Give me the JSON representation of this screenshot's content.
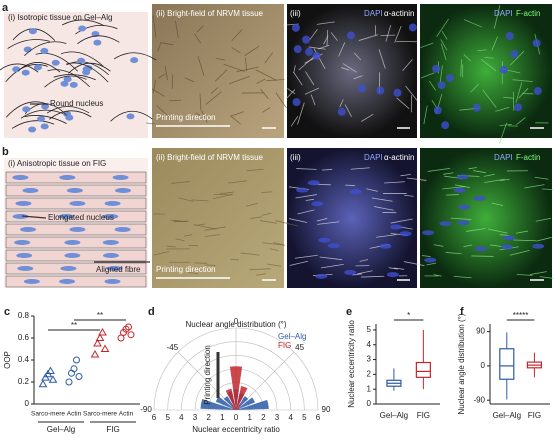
{
  "panel_a": {
    "label": "a",
    "i": {
      "title": "(i) Isotropic tissue on Gel–Alg",
      "annotation": "Round nucleus"
    },
    "ii": {
      "title": "(ii) Bright-field of NRVM tissue",
      "annotation": "Printing direction"
    },
    "iii": {
      "title": "(iii)",
      "stain1": "DAPI",
      "stain2": "α-actinin"
    },
    "iv": {
      "stain1": "DAPI",
      "stain2": "F-actin"
    }
  },
  "panel_b": {
    "label": "b",
    "i": {
      "title": "(i) Anisotropic tissue on FIG",
      "annotation1": "Elongated nucleus",
      "annotation2": "Aligned fibre"
    },
    "ii": {
      "title": "(ii) Bright-field of NRVM tissue",
      "annotation": "Printing direction"
    },
    "iii": {
      "title": "(iii)",
      "stain1": "DAPI",
      "stain2": "α-actinin"
    },
    "iv": {
      "stain1": "DAPI",
      "stain2": "F-actin"
    }
  },
  "panel_c": {
    "label": "c",
    "type": "scatter",
    "y_label": "OOP",
    "categories": [
      "Sarco-mere",
      "Actin",
      "Sarco-mere",
      "Actin"
    ],
    "groups": [
      "Gel–Alg",
      "FIG"
    ],
    "colors": [
      "#2b5aa6",
      "#2b5aa6",
      "#c3272b",
      "#c3272b"
    ],
    "markers": [
      "triangle",
      "circle",
      "triangle",
      "circle"
    ],
    "points": [
      [
        0.18,
        0.24,
        0.27,
        0.3,
        0.22
      ],
      [
        0.2,
        0.28,
        0.32,
        0.4,
        0.25
      ],
      [
        0.45,
        0.55,
        0.6,
        0.65,
        0.5
      ],
      [
        0.6,
        0.65,
        0.68,
        0.7,
        0.63
      ]
    ],
    "significance": [
      "**",
      "**"
    ],
    "ylim": [
      0,
      0.8
    ],
    "yticks": [
      0,
      0.2,
      0.4,
      0.6,
      0.8
    ]
  },
  "panel_d": {
    "label": "d",
    "type": "polar",
    "title": "Nuclear angle distribution (°)",
    "x_label": "Nuclear eccentricity ratio",
    "annotation": "Printing direction",
    "series": [
      {
        "name": "Gel–Alg",
        "color": "#2b5aa6",
        "values": [
          2.6,
          1.6,
          1.2,
          1.4,
          1.5,
          1.3,
          1.2,
          1.5,
          2.4
        ]
      },
      {
        "name": "FIG",
        "color": "#c3272b",
        "values": [
          0.2,
          0.3,
          0.5,
          1.6,
          3.2,
          1.8,
          0.5,
          0.3,
          0.2
        ]
      }
    ],
    "angles": [
      -80,
      -60,
      -40,
      -20,
      0,
      20,
      40,
      60,
      80
    ],
    "angle_ticks": [
      -90,
      -45,
      0,
      45,
      90
    ],
    "radial_ticks": [
      6,
      5,
      4,
      3,
      2,
      1,
      0,
      1,
      2,
      3,
      4,
      5,
      6
    ],
    "rlim": [
      0,
      6
    ]
  },
  "panel_e": {
    "label": "e",
    "type": "box",
    "y_label": "Nuclear eccentricity ratio",
    "categories": [
      "Gel–Alg",
      "FIG"
    ],
    "colors": [
      "#2b5aa6",
      "#c3272b"
    ],
    "min": [
      0.9,
      1.0
    ],
    "q1": [
      1.2,
      1.8
    ],
    "median": [
      1.4,
      2.2
    ],
    "q3": [
      1.6,
      2.8
    ],
    "max": [
      2.4,
      5
    ],
    "significance": "*",
    "ylim": [
      0,
      5.4
    ],
    "yticks": [
      0,
      1,
      2,
      3,
      4,
      5
    ]
  },
  "panel_f": {
    "label": "f",
    "type": "box",
    "y_label": "Nuclear angle distribution (°)",
    "categories": [
      "Gel–Alg",
      "FIG"
    ],
    "colors": [
      "#2b5aa6",
      "#c3272b"
    ],
    "min": [
      -88,
      -30
    ],
    "q1": [
      -35,
      -5
    ],
    "median": [
      0,
      2
    ],
    "q3": [
      45,
      10
    ],
    "max": [
      88,
      35
    ],
    "significance": "*****",
    "ylim": [
      -100,
      110
    ],
    "yticks": [
      -90,
      0,
      90
    ]
  }
}
